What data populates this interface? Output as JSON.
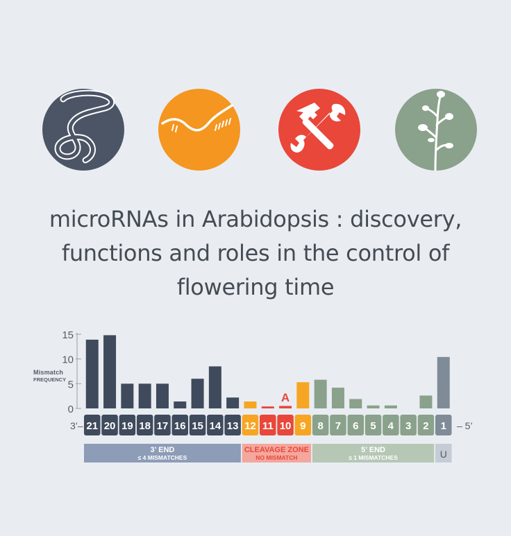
{
  "icons": [
    {
      "name": "worm-icon",
      "color": "#4b5565"
    },
    {
      "name": "rna-strand-icon",
      "color": "#f4961f"
    },
    {
      "name": "hammer-wrench-icon",
      "color": "#e8473a"
    },
    {
      "name": "arabidopsis-plant-icon",
      "color": "#8aa18b"
    }
  ],
  "title": {
    "line1": "microRNAs in Arabidopsis : discovery,",
    "line2": "functions and roles in the control of",
    "line3": "flowering time"
  },
  "chart_data": {
    "type": "bar",
    "ylabel_line1": "Mismatch",
    "ylabel_line2": "frequency",
    "yticks": [
      0,
      5,
      10,
      15
    ],
    "ylim": [
      0,
      15
    ],
    "categories": [
      "21",
      "20",
      "19",
      "18",
      "17",
      "16",
      "15",
      "14",
      "13",
      "12",
      "11",
      "10",
      "9",
      "8",
      "7",
      "6",
      "5",
      "4",
      "3",
      "2",
      "1"
    ],
    "values": [
      13.9,
      14.8,
      5.0,
      5.0,
      5.0,
      1.4,
      6.0,
      8.5,
      2.2,
      1.4,
      0.4,
      0.5,
      5.3,
      5.8,
      4.2,
      1.9,
      0.6,
      0.6,
      0,
      2.6,
      10.4
    ],
    "zones": [
      "3end",
      "3end",
      "3end",
      "3end",
      "3end",
      "3end",
      "3end",
      "3end",
      "3end",
      "cleave-light",
      "cleave",
      "cleave",
      "cleave-yellow",
      "5end",
      "5end",
      "5end",
      "5end",
      "5end",
      "5end",
      "5end",
      "u"
    ],
    "end_left": "3’–",
    "end_right": "– 5’",
    "annotation": "A",
    "annotation_position": "10",
    "regions": [
      {
        "key": "r3",
        "line1": "3’ END",
        "line2": "≤ 4 mismatches"
      },
      {
        "key": "rc",
        "line1": "CLEAVAGE ZONE",
        "line2": "NO MISMATCH"
      },
      {
        "key": "r5",
        "line1": "5’ END",
        "line2": "≤ 1 mismatches"
      },
      {
        "key": "ru",
        "line1": "U",
        "line2": ""
      }
    ],
    "colors": {
      "3end": "#3f4a5c",
      "cleave-light": "#f6a623",
      "cleave": "#e8473a",
      "cleave-yellow": "#f6a623",
      "5end": "#8aa18b",
      "u": "#7f8b96",
      "axis": "#9aa0a6",
      "text": "#555c63"
    }
  }
}
